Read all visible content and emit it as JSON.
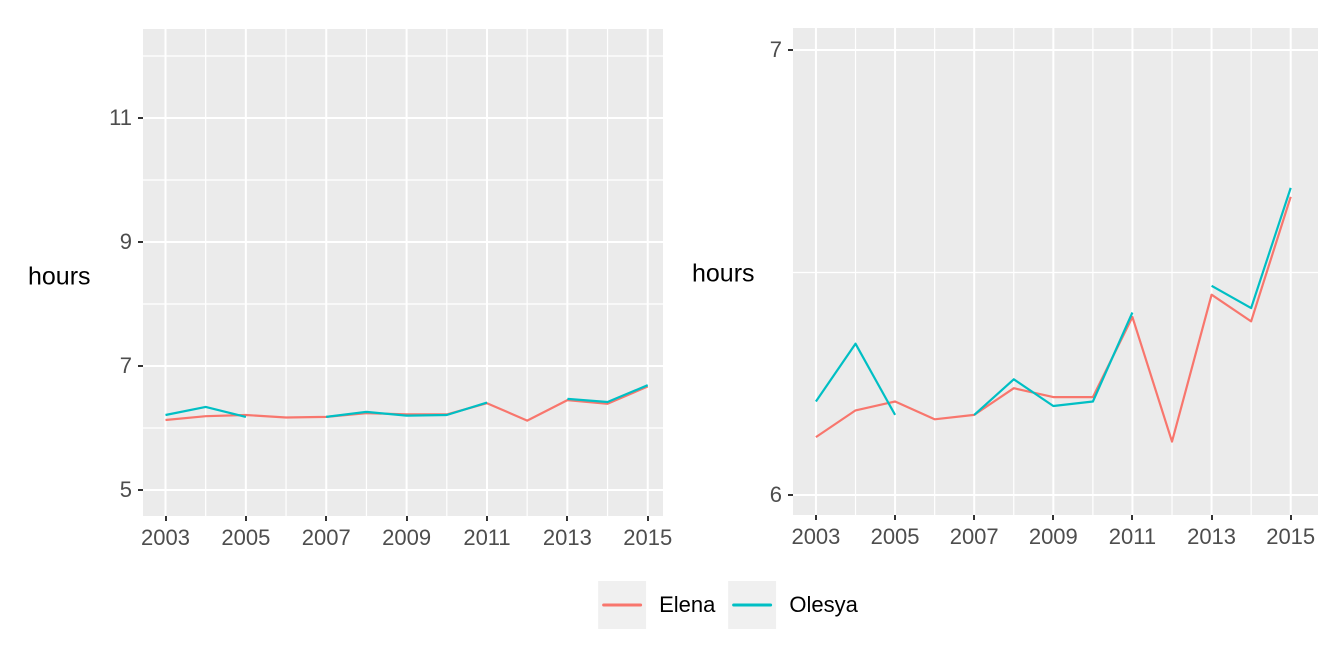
{
  "figure": {
    "background": "#ffffff"
  },
  "colors": {
    "panel_background": "#ebebeb",
    "gridline": "#ffffff",
    "tick_label": "#4d4d4d",
    "tick_mark": "#333333",
    "axis_title": "#000000",
    "legend_key_background": "#f0f0f0"
  },
  "legend": {
    "position": "bottom-center",
    "items": [
      {
        "label": "Elena",
        "color": "#F8766D"
      },
      {
        "label": "Olesya",
        "color": "#00BFC4"
      }
    ]
  },
  "chart_data": [
    {
      "type": "line",
      "title": "",
      "xlabel": "",
      "ylabel": "hours",
      "x": [
        2003,
        2004,
        2005,
        2006,
        2007,
        2008,
        2009,
        2010,
        2011,
        2012,
        2013,
        2014,
        2015
      ],
      "series": [
        {
          "name": "Elena",
          "color": "#F8766D",
          "values": [
            6.13,
            6.19,
            6.21,
            6.17,
            6.18,
            6.24,
            6.22,
            6.22,
            6.4,
            6.12,
            6.45,
            6.39,
            6.67
          ]
        },
        {
          "name": "Olesya",
          "color": "#00BFC4",
          "values": [
            6.21,
            6.34,
            6.18,
            null,
            6.18,
            6.26,
            6.2,
            6.21,
            6.41,
            null,
            6.47,
            6.42,
            6.69
          ]
        }
      ],
      "x_ticks": [
        2003,
        2005,
        2007,
        2009,
        2011,
        2013,
        2015
      ],
      "x_tick_labels": [
        "2003",
        "2005",
        "2007",
        "2009",
        "2011",
        "2013",
        "2015"
      ],
      "x_minor": [
        2004,
        2006,
        2008,
        2010,
        2012,
        2014
      ],
      "y_ticks": [
        5,
        7,
        9,
        11
      ],
      "y_tick_labels": [
        "5",
        "7",
        "9",
        "11"
      ],
      "y_minor": [
        6,
        8,
        10,
        12
      ],
      "xlim": [
        2002.44,
        2015.38
      ],
      "ylim": [
        4.581,
        12.435
      ],
      "grid": "white major+minor on gray panel",
      "legend_position": "bottom"
    },
    {
      "type": "line",
      "title": "",
      "xlabel": "",
      "ylabel": "hours",
      "x": [
        2003,
        2004,
        2005,
        2006,
        2007,
        2008,
        2009,
        2010,
        2011,
        2012,
        2013,
        2014,
        2015
      ],
      "series": [
        {
          "name": "Elena",
          "color": "#F8766D",
          "values": [
            6.13,
            6.19,
            6.21,
            6.17,
            6.18,
            6.24,
            6.22,
            6.22,
            6.4,
            6.12,
            6.45,
            6.39,
            6.67
          ]
        },
        {
          "name": "Olesya",
          "color": "#00BFC4",
          "values": [
            6.21,
            6.34,
            6.18,
            null,
            6.18,
            6.26,
            6.2,
            6.21,
            6.41,
            null,
            6.47,
            6.42,
            6.69
          ]
        }
      ],
      "x_ticks": [
        2003,
        2005,
        2007,
        2009,
        2011,
        2013,
        2015
      ],
      "x_tick_labels": [
        "2003",
        "2005",
        "2007",
        "2009",
        "2011",
        "2013",
        "2015"
      ],
      "x_minor": [
        2004,
        2006,
        2008,
        2010,
        2012,
        2014
      ],
      "y_ticks": [
        6,
        7
      ],
      "y_tick_labels": [
        "6",
        "7"
      ],
      "y_minor": [
        6.5
      ],
      "xlim": [
        2002.42,
        2015.69
      ],
      "ylim": [
        5.955,
        7.0494
      ],
      "grid": "white major+minor on gray panel",
      "legend_position": "bottom"
    }
  ]
}
